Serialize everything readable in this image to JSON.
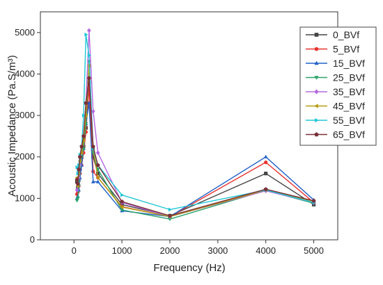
{
  "chart_data": {
    "type": "line",
    "title": "",
    "xlabel": "Frequency (Hz)",
    "ylabel": "Acoustic Impedance (Pa.S/m³)",
    "xlim": [
      -700,
      5500
    ],
    "ylim": [
      0,
      5500
    ],
    "xticks": [
      0,
      1000,
      2000,
      3000,
      4000,
      5000
    ],
    "yticks": [
      0,
      1000,
      2000,
      3000,
      4000,
      5000
    ],
    "legend_position": "top-right",
    "grid": false,
    "series": [
      {
        "name": "0_BVf",
        "color": "#444444",
        "marker": "square",
        "x": [
          63,
          80,
          100,
          125,
          160,
          200,
          250,
          315,
          400,
          500,
          1000,
          2000,
          4000,
          5000
        ],
        "y": [
          1400,
          1250,
          1450,
          1700,
          2000,
          2250,
          2700,
          3800,
          2000,
          1600,
          850,
          580,
          1600,
          850
        ]
      },
      {
        "name": "5_BVf",
        "color": "#e8322f",
        "marker": "circle",
        "x": [
          63,
          80,
          100,
          125,
          160,
          200,
          250,
          315,
          400,
          500,
          1000,
          2000,
          4000,
          5000
        ],
        "y": [
          1100,
          1150,
          1300,
          1600,
          1800,
          2100,
          2600,
          3700,
          1650,
          1500,
          800,
          560,
          1870,
          900
        ]
      },
      {
        "name": "15_BVf",
        "color": "#2160c8",
        "marker": "triangle-up",
        "x": [
          63,
          80,
          100,
          125,
          160,
          200,
          250,
          315,
          400,
          500,
          1000,
          2000,
          4000,
          5000
        ],
        "y": [
          1000,
          1050,
          1200,
          1500,
          1800,
          2200,
          2800,
          3300,
          1400,
          1400,
          700,
          560,
          2000,
          960
        ]
      },
      {
        "name": "25_BVf",
        "color": "#2aa36a",
        "marker": "triangle-down",
        "x": [
          63,
          80,
          100,
          125,
          160,
          200,
          250,
          315,
          400,
          500,
          1000,
          2000,
          4000,
          5000
        ],
        "y": [
          950,
          1000,
          1300,
          1750,
          2000,
          2200,
          2800,
          4300,
          2100,
          1700,
          720,
          500,
          1190,
          880
        ]
      },
      {
        "name": "35_BVf",
        "color": "#b468e0",
        "marker": "diamond",
        "x": [
          63,
          80,
          100,
          125,
          160,
          200,
          250,
          315,
          400,
          500,
          1000,
          2000,
          4000,
          5000
        ],
        "y": [
          1200,
          1350,
          1500,
          1800,
          2100,
          2500,
          3300,
          5050,
          3100,
          2100,
          900,
          560,
          1180,
          900
        ]
      },
      {
        "name": "45_BVf",
        "color": "#b59c10",
        "marker": "triangle-left",
        "x": [
          63,
          80,
          100,
          125,
          160,
          200,
          250,
          315,
          400,
          500,
          1000,
          2000,
          4000,
          5000
        ],
        "y": [
          1500,
          1300,
          1600,
          1900,
          2100,
          2400,
          3000,
          4200,
          2200,
          1500,
          790,
          560,
          1200,
          930
        ]
      },
      {
        "name": "55_BVf",
        "color": "#1fc6d6",
        "marker": "triangle-right",
        "x": [
          63,
          80,
          100,
          125,
          160,
          200,
          250,
          315,
          400,
          500,
          1000,
          2000,
          4000,
          5000
        ],
        "y": [
          1750,
          1600,
          1800,
          2050,
          2250,
          3000,
          4950,
          4450,
          2200,
          1800,
          1080,
          730,
          1200,
          900
        ]
      },
      {
        "name": "65_BVf",
        "color": "#7a3038",
        "marker": "pentagon",
        "x": [
          63,
          80,
          100,
          125,
          160,
          200,
          250,
          315,
          400,
          500,
          1000,
          2000,
          4000,
          5000
        ],
        "y": [
          1450,
          1350,
          1700,
          2000,
          2250,
          2500,
          3300,
          3900,
          2250,
          1800,
          920,
          580,
          1220,
          940
        ]
      }
    ]
  }
}
